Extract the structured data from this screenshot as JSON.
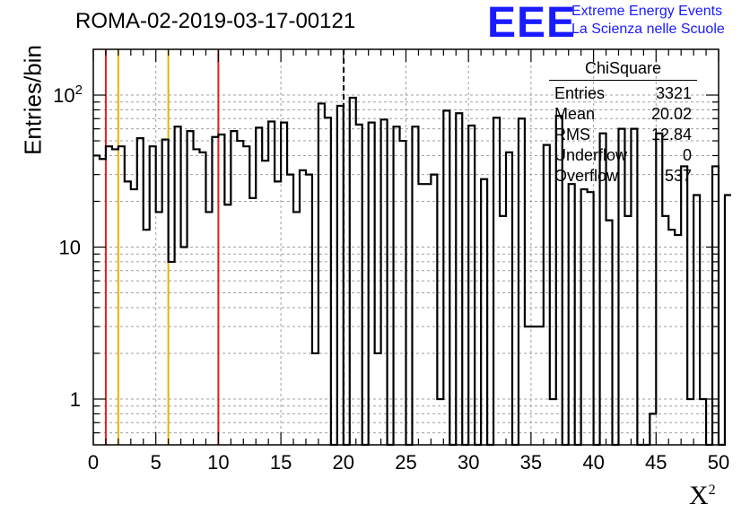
{
  "title": "ROMA-02-2019-03-17-00121",
  "logo": {
    "mark": "EEE",
    "line1": "Extreme Energy Events",
    "line2": "La Scienza nelle Scuole"
  },
  "stats_box": {
    "title": "ChiSquare",
    "rows": [
      {
        "label": "Entries",
        "value": "3321"
      },
      {
        "label": "Mean",
        "value": "20.02"
      },
      {
        "label": "RMS",
        "value": "12.84"
      },
      {
        "label": "Underflow",
        "value": "0"
      },
      {
        "label": "Overflow",
        "value": "537"
      }
    ]
  },
  "chart_data": {
    "type": "bar",
    "style": "step-histogram",
    "title": "ROMA-02-2019-03-17-00121",
    "xlabel": "X²",
    "ylabel": "Entries/bin",
    "x_range": [
      0,
      50
    ],
    "y_range": [
      0.5,
      200
    ],
    "y_scale": "log",
    "grid": true,
    "bin_width": 0.5,
    "x_ticks": [
      "0",
      "5",
      "10",
      "15",
      "20",
      "25",
      "30",
      "35",
      "40",
      "45",
      "50"
    ],
    "y_ticks": [
      {
        "value": 1,
        "label": "1"
      },
      {
        "value": 10,
        "label": "10"
      },
      {
        "value": 100,
        "label": "10^2"
      }
    ],
    "values": [
      40,
      38,
      46,
      44,
      46,
      27,
      24,
      52,
      13,
      46,
      17,
      51,
      8,
      62,
      10,
      58,
      44,
      42,
      17,
      53,
      55,
      19,
      58,
      50,
      46,
      21,
      61,
      37,
      67,
      27,
      66,
      30,
      17,
      32,
      30,
      2,
      88,
      71,
      0.5,
      85,
      0.4,
      96,
      64,
      0.4,
      66,
      2,
      69,
      0.4,
      62,
      50,
      0.4,
      62,
      26,
      26,
      30,
      1,
      79,
      0.4,
      76,
      0.4,
      63,
      0.4,
      28,
      0.4,
      71,
      16,
      42,
      0.4,
      70,
      3,
      3,
      3,
      47,
      1,
      73,
      0.4,
      26,
      0.4,
      24,
      23,
      0.5,
      56,
      15,
      0.4,
      60,
      16,
      60,
      0.4,
      0.5,
      0.8,
      56,
      16,
      13,
      12,
      34,
      1,
      22,
      1,
      0.4,
      34,
      0.4,
      22
    ],
    "vertical_lines": [
      {
        "x": 1,
        "color": "#e02020",
        "style": "solid"
      },
      {
        "x": 2,
        "color": "#f0b000",
        "style": "solid"
      },
      {
        "x": 6,
        "color": "#f0b000",
        "style": "solid"
      },
      {
        "x": 10,
        "color": "#e02020",
        "style": "solid"
      },
      {
        "x": 20.02,
        "color": "#000000",
        "style": "dashed"
      }
    ],
    "colors": {
      "histogram": "#000000",
      "grid": "#9aa0a6"
    }
  }
}
